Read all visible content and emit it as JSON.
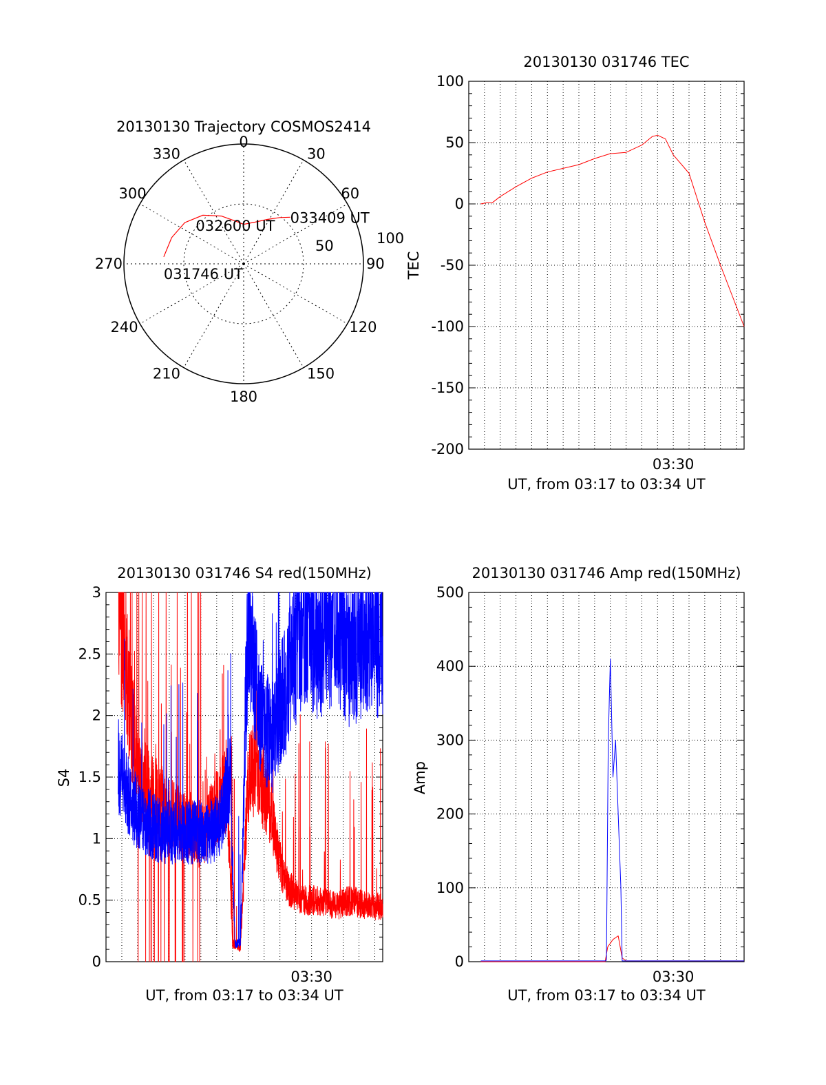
{
  "chart_data": [
    {
      "type": "polar",
      "title": "20130130 Trajectory COSMOS2414",
      "angle_ticks": [
        "0",
        "30",
        "60",
        "90",
        "120",
        "150",
        "180",
        "210",
        "240",
        "270",
        "300",
        "330"
      ],
      "radial_ticks": [
        "50",
        "100"
      ],
      "radial_max": 100,
      "trajectory": {
        "color": "#ff0000",
        "points": [
          [
            275,
            67
          ],
          [
            290,
            64
          ],
          [
            305,
            60
          ],
          [
            320,
            53
          ],
          [
            335,
            44
          ],
          [
            350,
            36
          ],
          [
            0,
            33
          ],
          [
            15,
            36
          ],
          [
            28,
            42
          ],
          [
            38,
            49
          ],
          [
            45,
            55
          ]
        ]
      },
      "annotations": [
        {
          "text": "033409 UT",
          "azimuth": 45,
          "distance": 55
        },
        {
          "text": "032600 UT",
          "azimuth": 340,
          "distance": 33
        },
        {
          "text": "031746 UT",
          "azimuth": 275,
          "distance": 67
        }
      ]
    },
    {
      "type": "line",
      "title": "20130130 031746 TEC",
      "ylabel": "TEC",
      "xlabel": "UT, from 03:17 to 03:34 UT",
      "xlim": [
        "03:17:00",
        "03:34:30"
      ],
      "ylim": [
        -200,
        100
      ],
      "yticks": [
        "100",
        "50",
        "0",
        "-50",
        "-100",
        "-150",
        "-200"
      ],
      "xticks": [
        "03:30"
      ],
      "grid": true,
      "series": [
        {
          "color": "#ff0000",
          "x": [
            "03:17:46",
            "03:18:10",
            "03:18:30",
            "03:19:00",
            "03:20:00",
            "03:21:00",
            "03:22:00",
            "03:23:00",
            "03:24:00",
            "03:25:00",
            "03:26:00",
            "03:27:00",
            "03:28:00",
            "03:28:40",
            "03:29:00",
            "03:29:30",
            "03:30:00",
            "03:31:00",
            "03:32:00",
            "03:33:00",
            "03:34:30"
          ],
          "y": [
            0,
            1,
            1,
            6,
            14,
            21,
            26,
            29,
            32,
            37,
            41,
            42,
            48,
            55,
            56,
            53,
            40,
            25,
            -15,
            -50,
            -100
          ]
        }
      ]
    },
    {
      "type": "line",
      "title": "20130130 031746 S4 red(150MHz)",
      "ylabel": "S4",
      "xlabel": "UT, from 03:17 to 03:34 UT",
      "xlim": [
        "03:17:00",
        "03:34:30"
      ],
      "ylim": [
        0,
        3
      ],
      "yticks": [
        "3",
        "2.5",
        "2",
        "1.5",
        "1",
        "0.5",
        "0"
      ],
      "xticks": [
        "03:30"
      ],
      "grid": true,
      "series": [
        {
          "color": "#0000ff",
          "note_shape": "noisy",
          "x": [
            "03:17:46",
            "03:18:30",
            "03:19:30",
            "03:20:30",
            "03:21:30",
            "03:22:30",
            "03:23:30",
            "03:24:10",
            "03:24:50",
            "03:25:10",
            "03:25:30",
            "03:26:00",
            "03:26:40",
            "03:27:30",
            "03:28:30",
            "03:29:30",
            "03:30:30",
            "03:31:30",
            "03:32:30",
            "03:33:30",
            "03:34:30"
          ],
          "y": [
            1.6,
            1.3,
            1.15,
            1.05,
            1.05,
            1.05,
            1.05,
            1.1,
            1.5,
            0.15,
            0.15,
            2.8,
            2.0,
            1.8,
            2.3,
            2.8,
            2.6,
            2.8,
            2.5,
            2.7,
            2.6
          ]
        },
        {
          "color": "#ff0000",
          "note_shape": "noisy",
          "x": [
            "03:17:46",
            "03:19:00",
            "03:21:00",
            "03:23:00",
            "03:24:10",
            "03:24:40",
            "03:25:00",
            "03:25:30",
            "03:26:00",
            "03:26:30",
            "03:27:00",
            "03:27:30",
            "03:28:00",
            "03:28:30",
            "03:29:30",
            "03:30:30",
            "03:31:30",
            "03:32:30",
            "03:33:30",
            "03:34:30"
          ],
          "y": [
            3.0,
            1.5,
            1.2,
            1.0,
            1.3,
            1.4,
            0.15,
            0.1,
            1.5,
            1.6,
            1.4,
            1.2,
            0.8,
            0.6,
            0.5,
            0.5,
            0.45,
            0.5,
            0.45,
            0.45
          ]
        }
      ]
    },
    {
      "type": "line",
      "title": "20130130 031746 Amp red(150MHz)",
      "ylabel": "Amp",
      "xlabel": "UT, from 03:17 to 03:34 UT",
      "xlim": [
        "03:17:00",
        "03:34:30"
      ],
      "ylim": [
        0,
        500
      ],
      "yticks": [
        "500",
        "400",
        "300",
        "200",
        "100",
        "0"
      ],
      "xticks": [
        "03:30"
      ],
      "grid": true,
      "series": [
        {
          "color": "#0000ff",
          "x": [
            "03:17:46",
            "03:25:40",
            "03:25:45",
            "03:25:52",
            "03:26:00",
            "03:26:10",
            "03:26:20",
            "03:26:30",
            "03:26:40",
            "03:26:45",
            "03:34:30"
          ],
          "y": [
            1,
            1,
            2,
            300,
            410,
            250,
            300,
            200,
            100,
            1,
            1
          ]
        },
        {
          "color": "#ff0000",
          "x": [
            "03:17:46",
            "03:25:40",
            "03:25:50",
            "03:26:10",
            "03:26:30",
            "03:26:45",
            "03:27:00",
            "03:34:30"
          ],
          "y": [
            0,
            0,
            20,
            30,
            35,
            5,
            1,
            1
          ]
        }
      ]
    }
  ]
}
